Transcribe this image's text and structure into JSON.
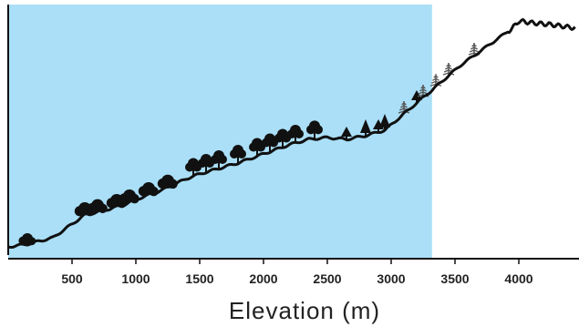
{
  "chart_data": {
    "type": "area",
    "xlabel": "Elevation (m)",
    "x_ticks": [
      500,
      1000,
      1500,
      2000,
      2500,
      3000,
      3500,
      4000
    ],
    "xlim": [
      0,
      4450
    ],
    "shaded_region": {
      "x_start": 0,
      "x_end": 3320,
      "color": "#aadff7"
    },
    "terrain_profile": {
      "x": [
        0,
        150,
        350,
        500,
        600,
        750,
        900,
        1000,
        1200,
        1400,
        1500,
        1650,
        1800,
        2000,
        2200,
        2350,
        2500,
        2650,
        2800,
        2950,
        3050,
        3150,
        3250,
        3320,
        3450,
        3550,
        3700,
        3850,
        3950,
        4000,
        4100,
        4250,
        4350,
        4450
      ],
      "height": [
        0,
        3,
        10,
        25,
        35,
        40,
        46,
        52,
        62,
        75,
        80,
        86,
        92,
        102,
        112,
        118,
        120,
        118,
        122,
        128,
        140,
        152,
        164,
        172,
        188,
        200,
        215,
        230,
        240,
        248,
        246,
        244,
        242,
        240
      ]
    },
    "vegetation": {
      "shrubs": [
        150,
        600,
        700,
        850,
        950,
        1100,
        1250
      ],
      "broadleaf_trees": [
        1450,
        1550,
        1650,
        1800,
        1950,
        2050,
        2150,
        2250,
        2400
      ],
      "conifers": [
        2650,
        2800,
        2900,
        2950,
        3200
      ],
      "sparse_alpine": [
        3100,
        3250,
        3350,
        3450,
        3650
      ]
    },
    "colors": {
      "sky": "#aadff7",
      "terrain": "#111111",
      "vegetation": "#111111",
      "alpine": "#555555"
    }
  }
}
